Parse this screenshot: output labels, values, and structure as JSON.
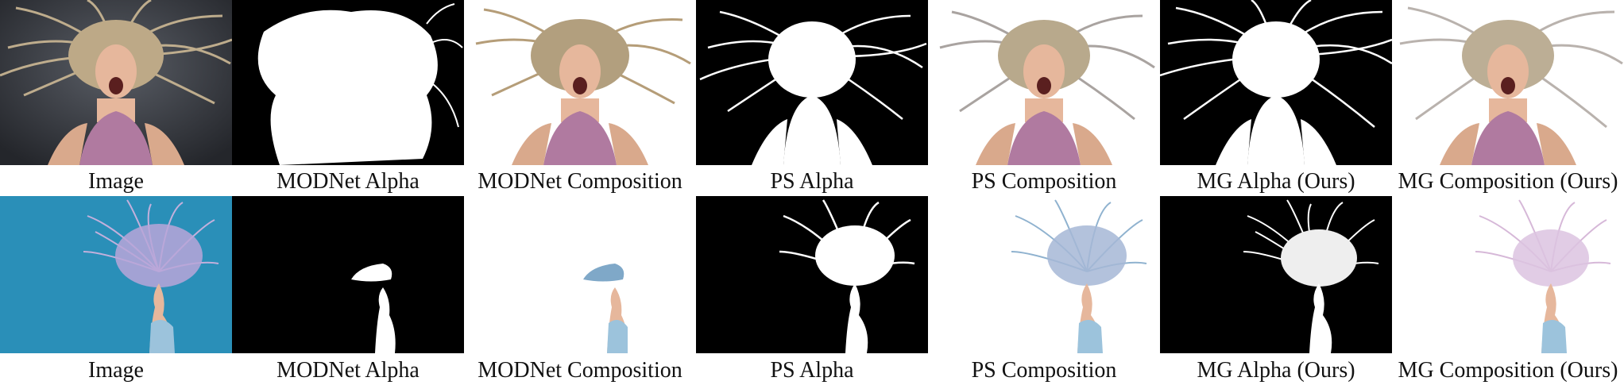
{
  "figure": {
    "rows": [
      {
        "id": "row-1",
        "captions": [
          "Image",
          "MODNet Alpha",
          "MODNet Composition",
          "PS Alpha",
          "PS Composition",
          "MG Alpha (Ours)",
          "MG Composition (Ours)"
        ]
      },
      {
        "id": "row-2",
        "captions": [
          "Image",
          "MODNet Alpha",
          "MODNet Composition",
          "PS Alpha",
          "PS Composition",
          "MG Alpha (Ours)",
          "MG Composition (Ours)"
        ]
      }
    ]
  },
  "colors": {
    "row1_background": "#3a3d44",
    "row2_background": "#2a8fb8",
    "alpha_background": "#000000",
    "alpha_foreground": "#ffffff",
    "hair_blonde": "#c9b48e",
    "hair_pastel": "#b9a6d8",
    "top_pink": "#b07aa0",
    "dress_blue": "#9cc3dc",
    "skin": "#e6b79c"
  }
}
